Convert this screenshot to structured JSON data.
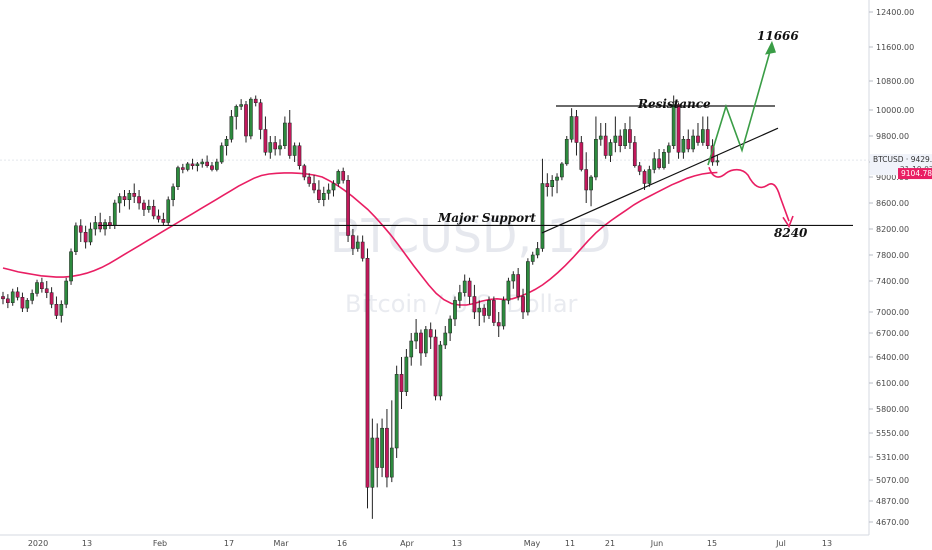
{
  "chart_data": {
    "type": "candlestick",
    "symbol": "BTCUSD",
    "watermark": {
      "ticker": "BTCUSD, 1D",
      "name": "Bitcoin / U.S. Dollar"
    },
    "y_axis": {
      "side": "right",
      "ylim": [
        4500,
        12500
      ],
      "ticks": [
        "12400.00",
        "11600.00",
        "10800.00",
        "10000.00",
        "9800.00",
        "9400.00",
        "9000.00",
        "8600.00",
        "8200.00",
        "7800.00",
        "7400.00",
        "7000.00",
        "6700.00",
        "6400.00",
        "6100.00",
        "5800.00",
        "5550.00",
        "5310.00",
        "5070.00",
        "4870.00",
        "4670.00"
      ]
    },
    "x_axis": {
      "ticks": [
        "2020",
        "13",
        "Feb",
        "17",
        "Mar",
        "16",
        "Apr",
        "13",
        "May",
        "11",
        "21",
        "Jun",
        "15",
        "Jul",
        "13"
      ]
    },
    "price_tags": [
      {
        "label": "BTCUSD",
        "value": "9429.24",
        "countdown": "21:19:07",
        "color": "#f0f3fa"
      },
      {
        "value": "9104.78",
        "color": "#e91e63"
      }
    ],
    "candles": [
      [
        7200,
        7260,
        7100,
        7170
      ],
      [
        7170,
        7230,
        7050,
        7120
      ],
      [
        7120,
        7300,
        7080,
        7260
      ],
      [
        7260,
        7320,
        7150,
        7190
      ],
      [
        7190,
        7250,
        7000,
        7050
      ],
      [
        7050,
        7180,
        7000,
        7150
      ],
      [
        7150,
        7290,
        7100,
        7240
      ],
      [
        7240,
        7420,
        7200,
        7380
      ],
      [
        7380,
        7450,
        7250,
        7300
      ],
      [
        7300,
        7400,
        7180,
        7250
      ],
      [
        7250,
        7320,
        7050,
        7100
      ],
      [
        7100,
        7200,
        6900,
        6950
      ],
      [
        6950,
        7150,
        6850,
        7100
      ],
      [
        7100,
        7450,
        7050,
        7400
      ],
      [
        7400,
        7900,
        7350,
        7850
      ],
      [
        7850,
        8300,
        7800,
        8250
      ],
      [
        8250,
        8350,
        8000,
        8150
      ],
      [
        8150,
        8250,
        7900,
        8000
      ],
      [
        8000,
        8300,
        7950,
        8200
      ],
      [
        8200,
        8400,
        8100,
        8300
      ],
      [
        8300,
        8450,
        8150,
        8200
      ],
      [
        8200,
        8350,
        8100,
        8300
      ],
      [
        8300,
        8400,
        8200,
        8250
      ],
      [
        8250,
        8650,
        8200,
        8600
      ],
      [
        8600,
        8750,
        8450,
        8700
      ],
      [
        8700,
        8800,
        8550,
        8650
      ],
      [
        8650,
        8800,
        8500,
        8750
      ],
      [
        8750,
        8900,
        8600,
        8700
      ],
      [
        8700,
        8800,
        8500,
        8600
      ],
      [
        8600,
        8650,
        8400,
        8500
      ],
      [
        8500,
        8650,
        8450,
        8550
      ],
      [
        8550,
        8650,
        8350,
        8400
      ],
      [
        8400,
        8500,
        8300,
        8350
      ],
      [
        8350,
        8450,
        8250,
        8300
      ],
      [
        8300,
        8700,
        8250,
        8650
      ],
      [
        8650,
        8900,
        8550,
        8850
      ],
      [
        8850,
        9300,
        8800,
        9250
      ],
      [
        9250,
        9350,
        9100,
        9200
      ],
      [
        9200,
        9400,
        9150,
        9350
      ],
      [
        9350,
        9450,
        9200,
        9300
      ],
      [
        9300,
        9400,
        9150,
        9350
      ],
      [
        9350,
        9450,
        9250,
        9400
      ],
      [
        9400,
        9500,
        9250,
        9300
      ],
      [
        9300,
        9400,
        9150,
        9200
      ],
      [
        9200,
        9450,
        9150,
        9400
      ],
      [
        9400,
        9700,
        9350,
        9650
      ],
      [
        9650,
        9800,
        9500,
        9750
      ],
      [
        9750,
        10000,
        9700,
        9950
      ],
      [
        9950,
        10150,
        9850,
        10100
      ],
      [
        10100,
        10300,
        10000,
        10150
      ],
      [
        10150,
        10250,
        9700,
        9800
      ],
      [
        9800,
        10350,
        9750,
        10300
      ],
      [
        10300,
        10400,
        10100,
        10200
      ],
      [
        10200,
        10300,
        9750,
        9850
      ],
      [
        9850,
        9950,
        9500,
        9550
      ],
      [
        9550,
        9800,
        9450,
        9700
      ],
      [
        9700,
        9800,
        9500,
        9600
      ],
      [
        9600,
        9750,
        9500,
        9650
      ],
      [
        9650,
        9950,
        9600,
        9900
      ],
      [
        9900,
        10000,
        9450,
        9500
      ],
      [
        9500,
        9700,
        9400,
        9650
      ],
      [
        9650,
        9700,
        9200,
        9300
      ],
      [
        9300,
        9350,
        8950,
        9000
      ],
      [
        9000,
        9100,
        8850,
        8900
      ],
      [
        8900,
        9050,
        8750,
        8800
      ],
      [
        8800,
        8950,
        8600,
        8650
      ],
      [
        8650,
        8850,
        8550,
        8750
      ],
      [
        8750,
        8900,
        8650,
        8800
      ],
      [
        8800,
        8950,
        8700,
        8900
      ],
      [
        8900,
        9200,
        8850,
        9150
      ],
      [
        9150,
        9250,
        8900,
        8950
      ],
      [
        8950,
        9050,
        8000,
        8100
      ],
      [
        8100,
        8200,
        7800,
        7900
      ],
      [
        7900,
        8100,
        7850,
        8000
      ],
      [
        8000,
        8100,
        7700,
        7750
      ],
      [
        7750,
        7900,
        4800,
        5000
      ],
      [
        5000,
        5700,
        4700,
        5500
      ],
      [
        5500,
        5650,
        5000,
        5200
      ],
      [
        5200,
        5700,
        5100,
        5600
      ],
      [
        5600,
        5800,
        5000,
        5100
      ],
      [
        5100,
        5900,
        5050,
        5400
      ],
      [
        5400,
        6300,
        5300,
        6200
      ],
      [
        6200,
        6400,
        5800,
        6000
      ],
      [
        6000,
        6500,
        5950,
        6400
      ],
      [
        6400,
        6700,
        6300,
        6600
      ],
      [
        6600,
        6900,
        6500,
        6700
      ],
      [
        6700,
        6750,
        6300,
        6450
      ],
      [
        6450,
        6800,
        6400,
        6750
      ],
      [
        6750,
        6850,
        6500,
        6650
      ],
      [
        6650,
        6750,
        5900,
        5950
      ],
      [
        5950,
        6600,
        5900,
        6550
      ],
      [
        6550,
        6800,
        6500,
        6700
      ],
      [
        6700,
        6950,
        6600,
        6900
      ],
      [
        6900,
        7200,
        6800,
        7150
      ],
      [
        7150,
        7350,
        7050,
        7250
      ],
      [
        7250,
        7500,
        7200,
        7400
      ],
      [
        7400,
        7450,
        7100,
        7200
      ],
      [
        7200,
        7350,
        6900,
        7000
      ],
      [
        7000,
        7150,
        6800,
        7050
      ],
      [
        7050,
        7100,
        6850,
        6950
      ],
      [
        6950,
        7200,
        6900,
        7150
      ],
      [
        7150,
        7200,
        6800,
        6850
      ],
      [
        6850,
        7000,
        6650,
        6800
      ],
      [
        6800,
        7200,
        6750,
        7150
      ],
      [
        7150,
        7450,
        7100,
        7400
      ],
      [
        7400,
        7550,
        7300,
        7500
      ],
      [
        7500,
        7600,
        7150,
        7200
      ],
      [
        7200,
        7300,
        6900,
        7000
      ],
      [
        7000,
        7750,
        6950,
        7700
      ],
      [
        7700,
        7850,
        7650,
        7800
      ],
      [
        7800,
        8000,
        7750,
        7900
      ],
      [
        7900,
        9450,
        7850,
        8900
      ],
      [
        8900,
        9100,
        8700,
        8850
      ],
      [
        8850,
        9050,
        8700,
        8950
      ],
      [
        8950,
        9100,
        8750,
        9000
      ],
      [
        9000,
        9400,
        8950,
        9350
      ],
      [
        9350,
        9800,
        9300,
        9750
      ],
      [
        9750,
        10050,
        9700,
        9950
      ],
      [
        9950,
        10000,
        9500,
        9700
      ],
      [
        9700,
        9800,
        9150,
        9200
      ],
      [
        9200,
        9550,
        8600,
        8800
      ],
      [
        8800,
        9050,
        8550,
        9000
      ],
      [
        9000,
        9950,
        8950,
        9750
      ],
      [
        9750,
        9900,
        9650,
        9800
      ],
      [
        9800,
        9900,
        9450,
        9500
      ],
      [
        9500,
        9750,
        9400,
        9700
      ],
      [
        9700,
        9950,
        9550,
        9800
      ],
      [
        9800,
        9850,
        9550,
        9650
      ],
      [
        9650,
        9900,
        9600,
        9850
      ],
      [
        9850,
        9950,
        9600,
        9700
      ],
      [
        9700,
        9800,
        9250,
        9300
      ],
      [
        9300,
        9400,
        9050,
        9150
      ],
      [
        9150,
        9200,
        8800,
        8900
      ],
      [
        8900,
        9300,
        8850,
        9200
      ],
      [
        9200,
        9550,
        9100,
        9450
      ],
      [
        9450,
        9600,
        9200,
        9250
      ],
      [
        9250,
        9600,
        9200,
        9550
      ],
      [
        9550,
        9700,
        9350,
        9650
      ],
      [
        9650,
        10400,
        9600,
        10150
      ],
      [
        10150,
        10200,
        9450,
        9550
      ],
      [
        9550,
        9800,
        9450,
        9750
      ],
      [
        9750,
        9850,
        9550,
        9600
      ],
      [
        9600,
        9850,
        9550,
        9800
      ],
      [
        9800,
        9900,
        9650,
        9700
      ],
      [
        9700,
        9950,
        9650,
        9850
      ],
      [
        9850,
        9950,
        9600,
        9650
      ],
      [
        9650,
        9750,
        9300,
        9400
      ],
      [
        9400,
        9500,
        9300,
        9420
      ]
    ],
    "ma_values": [
      7600,
      7570,
      7540,
      7520,
      7500,
      7480,
      7470,
      7460,
      7460,
      7470,
      7490,
      7520,
      7560,
      7610,
      7670,
      7740,
      7810,
      7880,
      7950,
      8020,
      8090,
      8160,
      8230,
      8300,
      8370,
      8440,
      8510,
      8580,
      8650,
      8720,
      8790,
      8860,
      8920,
      8980,
      9040,
      9080,
      9100,
      9110,
      9110,
      9100,
      9080,
      9050,
      9000,
      8940,
      8870,
      8790,
      8700,
      8600,
      8500,
      8380,
      8250,
      8110,
      7960,
      7800,
      7640,
      7490,
      7350,
      7240,
      7160,
      7110,
      7090,
      7090,
      7110,
      7140,
      7160,
      7170,
      7160,
      7170,
      7200,
      7240,
      7290,
      7350,
      7430,
      7530,
      7640,
      7760,
      7890,
      8020,
      8140,
      8240,
      8330,
      8410,
      8490,
      8570,
      8640,
      8700,
      8760,
      8820,
      8880,
      8930,
      8980,
      9030,
      9080,
      9110,
      9120
    ],
    "ma_start_index": 0,
    "annotations": {
      "resistance_label": "Resistance",
      "support_label": "Major Support",
      "target_up": "11666",
      "target_down": "8240"
    }
  }
}
